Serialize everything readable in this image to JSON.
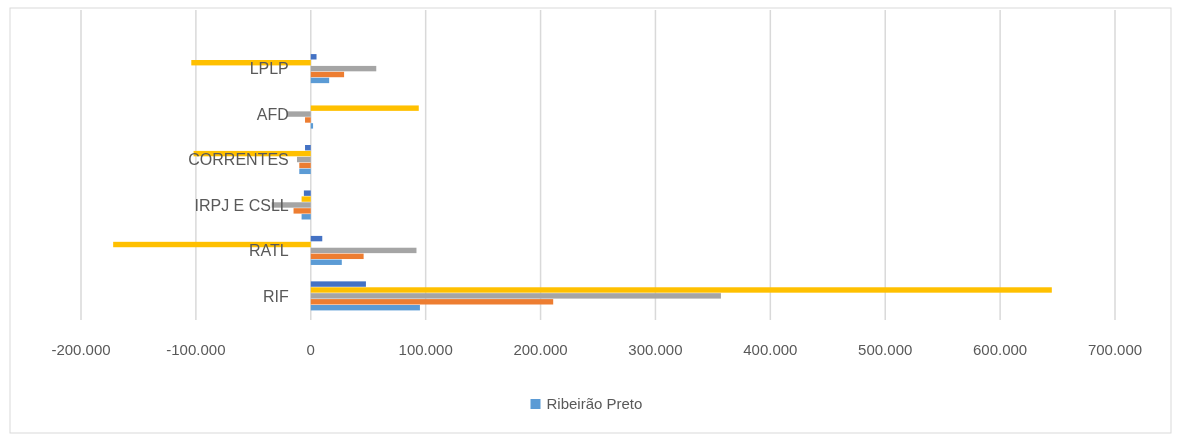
{
  "chart_data": {
    "type": "bar",
    "orientation": "horizontal",
    "categories": [
      "LPLP",
      "AFD",
      "CORRENTES",
      "IRPJ E CSLL",
      "RATL",
      "RIF"
    ],
    "series": [
      {
        "color": "#4472c4",
        "values": [
          5000,
          0,
          -5000,
          -6000,
          10000,
          48000
        ]
      },
      {
        "color": "#ffc000",
        "values": [
          -104000,
          94000,
          -102000,
          -8000,
          -172000,
          645000
        ]
      },
      {
        "color": "#a5a5a5",
        "values": [
          57000,
          -21000,
          -12000,
          -34000,
          92000,
          357000
        ]
      },
      {
        "color": "#ed7d31",
        "values": [
          29000,
          -5000,
          -10000,
          -15000,
          46000,
          211000
        ]
      },
      {
        "name": "Ribeirão Preto",
        "color": "#5b9bd5",
        "values": [
          16000,
          2000,
          -10000,
          -8000,
          27000,
          95000
        ]
      }
    ],
    "xlim": [
      -200000,
      700000
    ],
    "xticks": [
      {
        "value": -200000,
        "label": "-200.000"
      },
      {
        "value": -100000,
        "label": "-100.000"
      },
      0,
      {
        "value": 100000,
        "label": "100.000"
      },
      {
        "value": 200000,
        "label": "200.000"
      },
      {
        "value": 300000,
        "label": "300.000"
      },
      {
        "value": 400000,
        "label": "400.000"
      },
      {
        "value": 500000,
        "label": "500.000"
      },
      {
        "value": 600000,
        "label": "600.000"
      },
      {
        "value": 700000,
        "label": "700.000"
      }
    ],
    "grid": "x",
    "legend": "bottom"
  }
}
